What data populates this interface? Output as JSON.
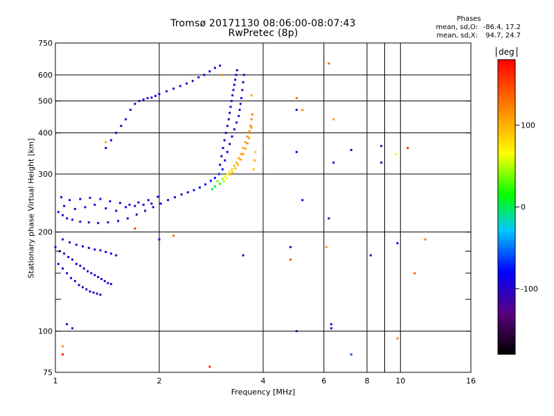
{
  "header": {
    "title_line1": "Tromsø 20171130 08:06:00-08:07:43",
    "title_line2": "RwPretec (8p)"
  },
  "phases_box": {
    "title": "Phases",
    "rows": [
      {
        "label": "mean, sd,O:",
        "value": "-86.4, 17.2"
      },
      {
        "label": "mean, sd,X:",
        "value": "94.7, 24.7"
      }
    ]
  },
  "colorbar": {
    "unit": "deg",
    "range": [
      -180,
      180
    ],
    "ticks": [
      {
        "value": 100,
        "label": "100"
      },
      {
        "value": 0,
        "label": "0"
      },
      {
        "value": -100,
        "label": "-100"
      }
    ]
  },
  "chart_data": {
    "type": "scatter",
    "title": "Tromsø 20171130 08:06:00-08:07:43",
    "subtitle": "RwPretec (8p)",
    "xlabel": "Frequency [MHz]",
    "ylabel": "Stationary phase Virtual Height [km]",
    "x_scale": "log",
    "y_scale": "log",
    "xlim": [
      1,
      16
    ],
    "ylim": [
      75,
      750
    ],
    "x_ticks": [
      {
        "value": 1,
        "label": "1"
      },
      {
        "value": 2,
        "label": "2"
      },
      {
        "value": 4,
        "label": "4"
      },
      {
        "value": 6,
        "label": "6"
      },
      {
        "value": 8,
        "label": "8"
      },
      {
        "value": 10,
        "label": "10"
      },
      {
        "value": 16,
        "label": "16"
      }
    ],
    "x_minor": [
      9
    ],
    "y_ticks": [
      {
        "value": 75,
        "label": "75"
      },
      {
        "value": 100,
        "label": "100"
      },
      {
        "value": 200,
        "label": "200"
      },
      {
        "value": 300,
        "label": "300"
      },
      {
        "value": 400,
        "label": "400"
      },
      {
        "value": 500,
        "label": "500"
      },
      {
        "value": 600,
        "label": "600"
      },
      {
        "value": 750,
        "label": "750"
      }
    ],
    "y_minor": [
      125,
      150,
      175
    ],
    "grid": true,
    "color_scale": {
      "label": "deg",
      "min": -180,
      "max": 180
    },
    "series": [
      {
        "desc_key": "O-mode trace (bluish, ~-100 deg)",
        "points": [
          [
            1.02,
            230,
            -95
          ],
          [
            1.05,
            225,
            -100
          ],
          [
            1.08,
            220,
            -105
          ],
          [
            1.12,
            218,
            -98
          ],
          [
            1.18,
            215,
            -102
          ],
          [
            1.25,
            214,
            -96
          ],
          [
            1.33,
            213,
            -104
          ],
          [
            1.42,
            214,
            -99
          ],
          [
            1.52,
            216,
            -92
          ],
          [
            1.62,
            220,
            -100
          ],
          [
            1.72,
            226,
            -95
          ],
          [
            1.82,
            232,
            -103
          ],
          [
            1.92,
            238,
            -97
          ],
          [
            2.02,
            244,
            -90
          ],
          [
            2.12,
            250,
            -100
          ],
          [
            2.22,
            255,
            -94
          ],
          [
            2.32,
            260,
            -98
          ],
          [
            2.42,
            264,
            -86
          ],
          [
            2.52,
            268,
            -92
          ],
          [
            2.62,
            273,
            -80
          ],
          [
            2.72,
            279,
            -88
          ],
          [
            2.82,
            286,
            -72
          ],
          [
            2.9,
            292,
            -78
          ],
          [
            2.98,
            300,
            -66
          ],
          [
            1.04,
            255,
            -100
          ],
          [
            1.1,
            250,
            -96
          ],
          [
            1.18,
            252,
            -104
          ],
          [
            1.26,
            254,
            -98
          ],
          [
            1.35,
            252,
            -101
          ],
          [
            1.44,
            248,
            -97
          ],
          [
            1.54,
            245,
            -105
          ],
          [
            1.64,
            242,
            -99
          ],
          [
            1.74,
            246,
            -95
          ],
          [
            1.86,
            250,
            -100
          ],
          [
            1.98,
            256,
            -92
          ],
          [
            1.06,
            240,
            -100
          ],
          [
            1.14,
            235,
            -97
          ],
          [
            1.22,
            238,
            -103
          ],
          [
            1.3,
            242,
            -95
          ],
          [
            1.4,
            236,
            -101
          ],
          [
            1.5,
            232,
            -98
          ],
          [
            1.6,
            238,
            -94
          ],
          [
            1.7,
            240,
            -102
          ],
          [
            1.8,
            242,
            -96
          ],
          [
            1.9,
            244,
            -99
          ],
          [
            3.0,
            320,
            -98
          ],
          [
            3.03,
            340,
            -105
          ],
          [
            3.06,
            360,
            -96
          ],
          [
            3.09,
            380,
            -102
          ],
          [
            3.12,
            400,
            -99
          ],
          [
            3.15,
            420,
            -104
          ],
          [
            3.18,
            440,
            -96
          ],
          [
            3.2,
            460,
            -100
          ],
          [
            3.22,
            480,
            -95
          ],
          [
            3.24,
            500,
            -102
          ],
          [
            3.26,
            520,
            -98
          ],
          [
            3.28,
            540,
            -103
          ],
          [
            3.3,
            560,
            -96
          ],
          [
            3.32,
            580,
            -99
          ],
          [
            3.34,
            600,
            -104
          ],
          [
            3.36,
            620,
            -97
          ],
          [
            3.05,
            310,
            -86
          ],
          [
            3.1,
            330,
            -92
          ],
          [
            3.15,
            350,
            -88
          ],
          [
            3.2,
            370,
            -94
          ],
          [
            3.25,
            390,
            -90
          ],
          [
            3.3,
            410,
            -98
          ],
          [
            3.35,
            430,
            -93
          ],
          [
            3.4,
            450,
            -100
          ],
          [
            3.42,
            470,
            -96
          ],
          [
            3.44,
            490,
            -101
          ],
          [
            3.46,
            510,
            -97
          ],
          [
            3.48,
            540,
            -103
          ],
          [
            3.5,
            570,
            -99
          ],
          [
            3.52,
            600,
            -105
          ],
          [
            1.0,
            180,
            -100
          ],
          [
            1.03,
            175,
            -95
          ],
          [
            1.06,
            172,
            -104
          ],
          [
            1.09,
            168,
            -98
          ],
          [
            1.12,
            165,
            -102
          ],
          [
            1.15,
            160,
            -96
          ],
          [
            1.18,
            158,
            -101
          ],
          [
            1.21,
            155,
            -97
          ],
          [
            1.24,
            152,
            -103
          ],
          [
            1.27,
            150,
            -99
          ],
          [
            1.3,
            148,
            -94
          ],
          [
            1.33,
            146,
            -100
          ],
          [
            1.36,
            144,
            -96
          ],
          [
            1.39,
            142,
            -102
          ],
          [
            1.42,
            140,
            -98
          ],
          [
            1.45,
            139,
            -95
          ],
          [
            1.02,
            160,
            -92
          ],
          [
            1.05,
            155,
            -98
          ],
          [
            1.08,
            150,
            -94
          ],
          [
            1.11,
            145,
            -100
          ],
          [
            1.14,
            142,
            -96
          ],
          [
            1.17,
            138,
            -103
          ],
          [
            1.2,
            136,
            -99
          ],
          [
            1.23,
            134,
            -95
          ],
          [
            1.26,
            132,
            -101
          ],
          [
            1.29,
            131,
            -97
          ],
          [
            1.32,
            130,
            -102
          ],
          [
            1.35,
            129,
            -98
          ],
          [
            1.05,
            190,
            -100
          ],
          [
            1.1,
            186,
            -96
          ],
          [
            1.15,
            183,
            -102
          ],
          [
            1.2,
            181,
            -98
          ],
          [
            1.25,
            179,
            -103
          ],
          [
            1.3,
            177,
            -97
          ],
          [
            1.35,
            176,
            -101
          ],
          [
            1.4,
            174,
            -95
          ],
          [
            1.45,
            172,
            -99
          ],
          [
            1.5,
            170,
            -103
          ],
          [
            1.4,
            360,
            -100
          ],
          [
            1.45,
            380,
            -96
          ],
          [
            1.5,
            400,
            -102
          ],
          [
            1.55,
            420,
            -98
          ],
          [
            1.6,
            440,
            -104
          ],
          [
            1.65,
            470,
            -97
          ],
          [
            1.7,
            490,
            -101
          ],
          [
            1.75,
            500,
            -95
          ],
          [
            1.8,
            505,
            -99
          ],
          [
            1.85,
            510,
            -103
          ],
          [
            1.9,
            512,
            -98
          ],
          [
            1.95,
            518,
            -100
          ],
          [
            2.0,
            525,
            -96
          ],
          [
            2.1,
            535,
            -102
          ],
          [
            2.2,
            545,
            -98
          ],
          [
            2.3,
            555,
            -101
          ],
          [
            2.4,
            565,
            -97
          ],
          [
            2.5,
            575,
            -103
          ],
          [
            2.6,
            590,
            -99
          ],
          [
            2.7,
            600,
            -95
          ],
          [
            2.8,
            615,
            -101
          ],
          [
            2.9,
            630,
            -97
          ],
          [
            3.0,
            640,
            -103
          ],
          [
            1.08,
            105,
            -98
          ],
          [
            1.12,
            102,
            -102
          ],
          [
            5.0,
            100,
            -100
          ],
          [
            6.3,
            105,
            -100
          ],
          [
            6.3,
            102,
            -96
          ],
          [
            7.2,
            85,
            -60
          ],
          [
            5.0,
            470,
            -100
          ],
          [
            5.0,
            350,
            -104
          ],
          [
            5.2,
            250,
            -102
          ],
          [
            6.2,
            220,
            -100
          ],
          [
            6.4,
            325,
            -98
          ],
          [
            7.2,
            355,
            -102
          ],
          [
            8.8,
            365,
            -100
          ],
          [
            8.8,
            325,
            -104
          ],
          [
            8.2,
            170,
            -98
          ],
          [
            9.8,
            185,
            -80
          ],
          [
            4.8,
            180,
            -100
          ],
          [
            3.5,
            170,
            -102
          ],
          [
            2.0,
            190,
            -96
          ]
        ]
      },
      {
        "desc_key": "X-mode trace (yellow/orange, ~+95 deg)",
        "points": [
          [
            3.05,
            290,
            40
          ],
          [
            3.1,
            295,
            60
          ],
          [
            3.15,
            300,
            70
          ],
          [
            3.2,
            305,
            80
          ],
          [
            3.25,
            310,
            90
          ],
          [
            3.3,
            318,
            95
          ],
          [
            3.35,
            325,
            100
          ],
          [
            3.4,
            335,
            105
          ],
          [
            3.45,
            345,
            100
          ],
          [
            3.5,
            360,
            110
          ],
          [
            3.55,
            375,
            105
          ],
          [
            3.6,
            390,
            115
          ],
          [
            3.65,
            405,
            110
          ],
          [
            3.68,
            420,
            120
          ],
          [
            3.7,
            440,
            115
          ],
          [
            3.72,
            455,
            125
          ],
          [
            3.08,
            285,
            50
          ],
          [
            3.14,
            292,
            65
          ],
          [
            3.2,
            298,
            75
          ],
          [
            3.26,
            304,
            85
          ],
          [
            3.32,
            312,
            90
          ],
          [
            3.38,
            320,
            100
          ],
          [
            3.44,
            332,
            105
          ],
          [
            3.5,
            345,
            110
          ],
          [
            3.56,
            358,
            100
          ],
          [
            3.6,
            372,
            115
          ],
          [
            3.64,
            386,
            108
          ],
          [
            3.66,
            400,
            118
          ],
          [
            3.7,
            415,
            112
          ],
          [
            3.8,
            350,
            95
          ],
          [
            3.78,
            330,
            100
          ],
          [
            3.75,
            310,
            92
          ],
          [
            2.95,
            285,
            30
          ],
          [
            3.0,
            280,
            20
          ],
          [
            2.9,
            275,
            10
          ],
          [
            2.85,
            270,
            0
          ],
          [
            6.2,
            650,
            130
          ],
          [
            6.4,
            440,
            110
          ],
          [
            5.0,
            510,
            130
          ],
          [
            5.2,
            470,
            120
          ],
          [
            9.7,
            345,
            60
          ],
          [
            10.5,
            360,
            160
          ],
          [
            11.0,
            150,
            140
          ],
          [
            11.8,
            190,
            120
          ],
          [
            6.1,
            180,
            110
          ],
          [
            4.8,
            165,
            150
          ],
          [
            2.2,
            195,
            130
          ],
          [
            1.7,
            205,
            150
          ],
          [
            1.4,
            375,
            110
          ],
          [
            1.05,
            85,
            170
          ],
          [
            1.05,
            90,
            110
          ],
          [
            9.8,
            95,
            115
          ],
          [
            2.8,
            78,
            160
          ],
          [
            3.05,
            600,
            110
          ],
          [
            3.7,
            520,
            100
          ]
        ]
      }
    ]
  }
}
